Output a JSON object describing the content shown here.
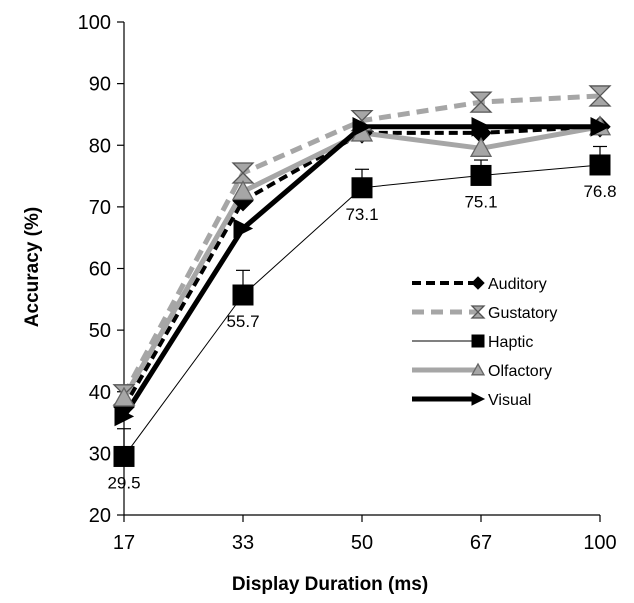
{
  "chart_data": {
    "type": "line",
    "title": "",
    "xlabel": "Display Duration (ms)",
    "ylabel": "Accuracy (%)",
    "x": [
      "17",
      "33",
      "50",
      "67",
      "100"
    ],
    "ylim": [
      20,
      100
    ],
    "yticks": [
      20,
      30,
      40,
      50,
      60,
      70,
      80,
      90,
      100
    ],
    "grid": false,
    "legend_position": "right-center",
    "series": [
      {
        "name": "Auditory",
        "values": [
          37.5,
          71.0,
          82.0,
          82.0,
          83.0
        ],
        "color": "#000000",
        "line": "dashed",
        "width": 4,
        "marker": "diamond"
      },
      {
        "name": "Gustatory",
        "values": [
          39.5,
          75.5,
          84.0,
          87.0,
          88.0
        ],
        "color": "#a6a6a6",
        "line": "dashed",
        "width": 5,
        "marker": "hourglass"
      },
      {
        "name": "Haptic",
        "values": [
          29.5,
          55.7,
          73.1,
          75.1,
          76.8
        ],
        "color": "#000000",
        "line": "solid",
        "width": 1,
        "marker": "square",
        "error_plus": [
          4.5,
          4.0,
          3.0,
          2.5,
          3.0
        ]
      },
      {
        "name": "Olfactory",
        "values": [
          39.0,
          72.5,
          82.0,
          79.5,
          83.0
        ],
        "color": "#a6a6a6",
        "line": "solid",
        "width": 5,
        "marker": "triangle"
      },
      {
        "name": "Visual",
        "values": [
          36.0,
          66.5,
          83.0,
          83.0,
          83.0
        ],
        "color": "#000000",
        "line": "solid",
        "width": 5,
        "marker": "arrow"
      }
    ],
    "data_labels": [
      {
        "text": "29.5",
        "series": "Haptic",
        "index": 0
      },
      {
        "text": "55.7",
        "series": "Haptic",
        "index": 1
      },
      {
        "text": "73.1",
        "series": "Haptic",
        "index": 2
      },
      {
        "text": "75.1",
        "series": "Haptic",
        "index": 3
      },
      {
        "text": "76.8",
        "series": "Haptic",
        "index": 4
      }
    ]
  }
}
